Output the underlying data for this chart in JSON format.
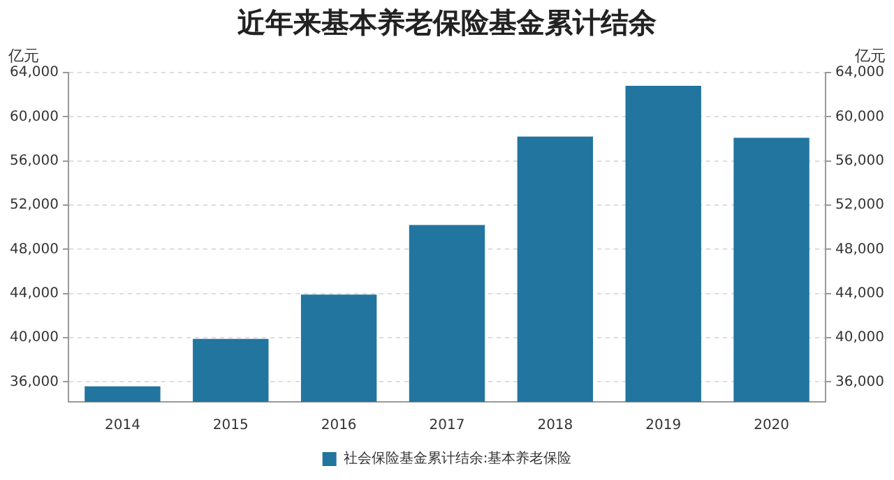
{
  "chart_data": {
    "type": "bar",
    "title": "近年来基本养老保险基金累计结余",
    "ylabel": "亿元",
    "y2label": "亿元",
    "categories": [
      "2014",
      "2015",
      "2016",
      "2017",
      "2018",
      "2019",
      "2020"
    ],
    "series": [
      {
        "name": "社会保险基金累计结余:基本养老保险",
        "color": "#21759f",
        "values": [
          35600,
          39900,
          43900,
          50200,
          58200,
          62800,
          58100
        ]
      }
    ],
    "ylim": [
      34200,
      64000
    ],
    "yticks": [
      {
        "value": 36000,
        "label": "36,000"
      },
      {
        "value": 40000,
        "label": "40,000"
      },
      {
        "value": 44000,
        "label": "44,000"
      },
      {
        "value": 48000,
        "label": "48,000"
      },
      {
        "value": 52000,
        "label": "52,000"
      },
      {
        "value": 56000,
        "label": "56,000"
      },
      {
        "value": 60000,
        "label": "60,000"
      },
      {
        "value": 64000,
        "label": "64,000"
      }
    ],
    "y2lim": [
      34200,
      64000
    ],
    "y2ticks": [
      {
        "value": 36000,
        "label": "36,000"
      },
      {
        "value": 40000,
        "label": "40,000"
      },
      {
        "value": 44000,
        "label": "44,000"
      },
      {
        "value": 48000,
        "label": "48,000"
      },
      {
        "value": 52000,
        "label": "52,000"
      },
      {
        "value": 56000,
        "label": "56,000"
      },
      {
        "value": 60000,
        "label": "60,000"
      },
      {
        "value": 64000,
        "label": "64,000"
      }
    ],
    "grid": "y",
    "legend": "bottom"
  }
}
